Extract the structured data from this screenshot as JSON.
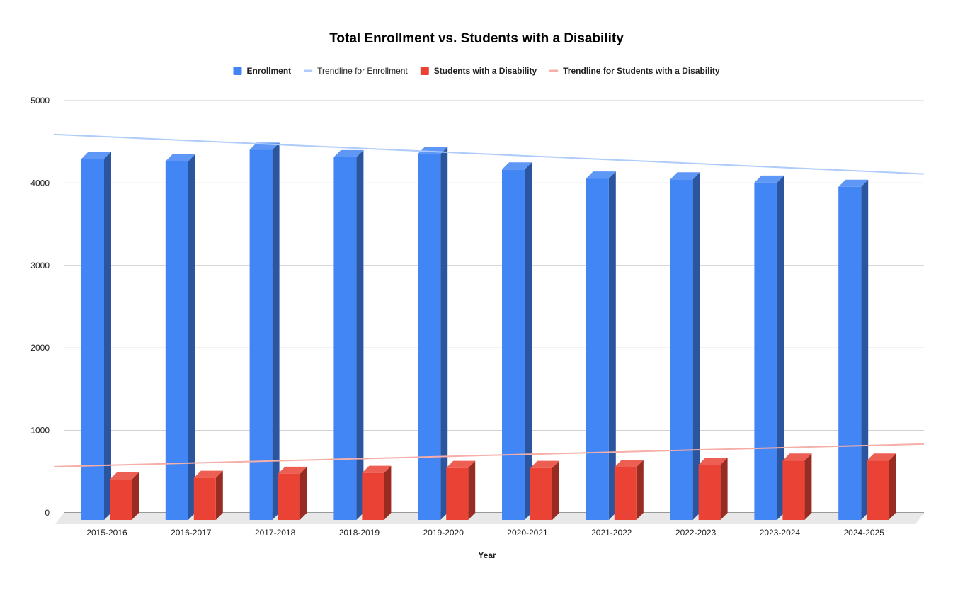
{
  "chart_data": {
    "type": "bar",
    "title": "Total Enrollment vs. Students with a Disability",
    "xlabel": "Year",
    "ylabel": "",
    "ylim": [
      0,
      5000
    ],
    "yticks": [
      "0",
      "1000",
      "2000",
      "3000",
      "4000",
      "5000"
    ],
    "grid": true,
    "legend_position": "top",
    "three_d": true,
    "categories": [
      "2015-2016",
      "2016-2017",
      "2017-2018",
      "2018-2019",
      "2019-2020",
      "2020-2021",
      "2021-2022",
      "2022-2023",
      "2023-2024",
      "2024-2025"
    ],
    "series": [
      {
        "name": "Enrollment",
        "color": "#4285f4",
        "values": [
          4380,
          4350,
          4490,
          4400,
          4440,
          4250,
          4140,
          4130,
          4090,
          4040
        ]
      },
      {
        "name": "Students with a Disability",
        "color": "#ea4335",
        "values": [
          490,
          510,
          560,
          570,
          630,
          630,
          640,
          670,
          720,
          720
        ]
      }
    ],
    "trendlines": [
      {
        "name": "Trendline for Enrollment",
        "series": "Enrollment",
        "color": "#aecbfa",
        "start": 4590,
        "end": 4110
      },
      {
        "name": "Trendline for Students with a Disability",
        "series": "Students with a Disability",
        "color": "#f6aea9",
        "start": 560,
        "end": 835
      }
    ],
    "legend": [
      {
        "label": "Enrollment",
        "kind": "box",
        "color": "#4285f4",
        "bold": true
      },
      {
        "label": "Trendline for Enrollment",
        "kind": "line",
        "color": "#aecbfa",
        "bold": false
      },
      {
        "label": "Students with a Disability",
        "kind": "box",
        "color": "#ea4335",
        "bold": true
      },
      {
        "label": "Trendline for Students with a Disability",
        "kind": "line",
        "color": "#f6aea9",
        "bold": true
      }
    ]
  }
}
